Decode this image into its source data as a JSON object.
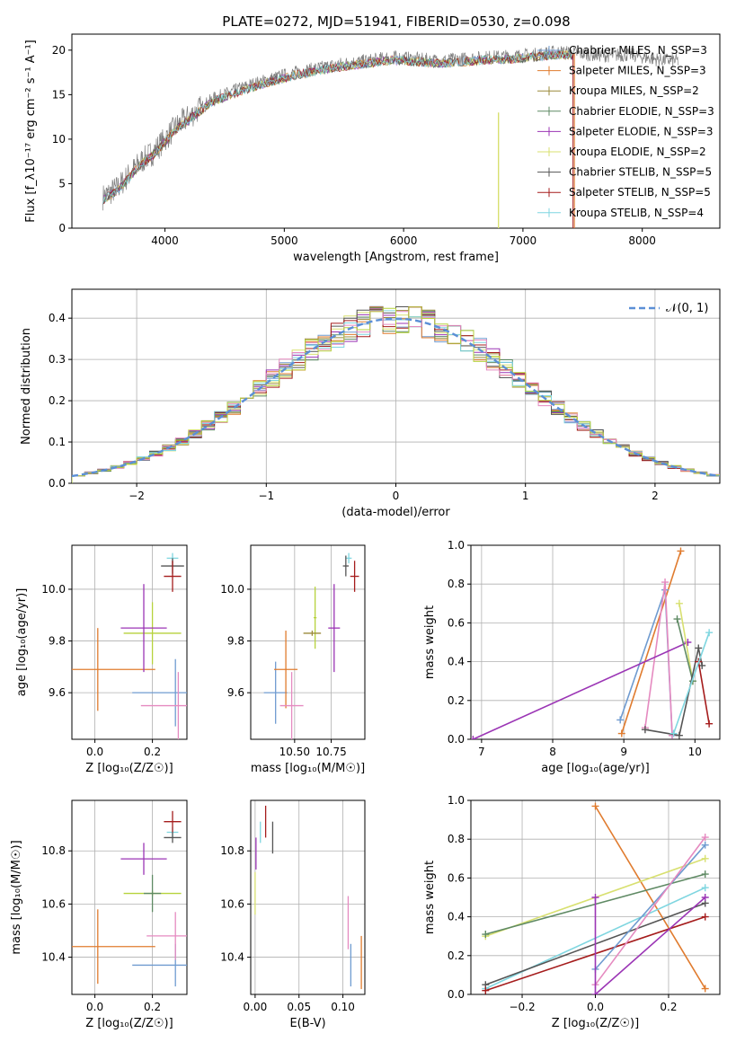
{
  "figure": {
    "title": "PLATE=0272, MJD=51941, FIBERID=0530, z=0.098"
  },
  "colors": {
    "Chabrier MILES": "#6f9bd0",
    "Salpeter MILES": "#e07b2e",
    "Kroupa MILES": "#9a8a3a",
    "Chabrier ELODIE": "#5f8a64",
    "Salpeter ELODIE": "#9b35b5",
    "Kroupa ELODIE": "#d8e070",
    "Chabrier STELIB": "#555555",
    "Salpeter STELIB": "#a51c1c",
    "Kroupa STELIB": "#7fd6e0",
    "Pink": "#e58ac0",
    "Lime": "#b6d23c"
  },
  "chart_data": [
    {
      "id": "spectrum",
      "type": "line",
      "xlabel": "wavelength [Angstrom, rest frame]",
      "ylabel": "Flux [f_λ10⁻¹⁷ erg cm⁻² s⁻¹ A⁻¹]",
      "xlim": [
        3220,
        8650
      ],
      "ylim": [
        0,
        21.8
      ],
      "xticks": [
        "4000",
        "5000",
        "6000",
        "7000",
        "8000"
      ],
      "yticks": [
        "0",
        "5",
        "10",
        "15",
        "20"
      ],
      "legend_position": "top-right",
      "legend": [
        "Chabrier MILES, N_SSP=3",
        "Salpeter MILES, N_SSP=3",
        "Kroupa MILES, N_SSP=2",
        "Chabrier ELODIE, N_SSP=3",
        "Salpeter ELODIE, N_SSP=3",
        "Kroupa ELODIE, N_SSP=2",
        "Chabrier STELIB, N_SSP=5",
        "Salpeter STELIB, N_SSP=5",
        "Kroupa STELIB, N_SSP=4"
      ],
      "data_envelope": {
        "x": [
          3480,
          3600,
          3700,
          3800,
          3900,
          4000,
          4100,
          4200,
          4300,
          4400,
          4500,
          4700,
          4900,
          5100,
          5300,
          5500,
          5700,
          5900,
          6100,
          6300,
          6500,
          6700,
          6900,
          7100,
          7300,
          7500,
          7700,
          7900,
          8100,
          8300
        ],
        "y": [
          3.5,
          4.5,
          6.0,
          7.5,
          8.5,
          10.0,
          11.5,
          12.5,
          13.5,
          14.5,
          15.0,
          16.0,
          16.8,
          17.5,
          18.0,
          18.5,
          18.8,
          19.2,
          19.0,
          18.8,
          19.0,
          19.2,
          19.3,
          19.5,
          19.8,
          19.6,
          19.4,
          19.5,
          19.0,
          18.8
        ]
      },
      "model_xmax": 7420
    },
    {
      "id": "residuals",
      "type": "bar",
      "xlabel": "(data-model)/error",
      "ylabel": "Normed distribution",
      "xlim": [
        -2.5,
        2.5
      ],
      "ylim": [
        0,
        0.47
      ],
      "xticks": [
        "−2",
        "−1",
        "0",
        "1",
        "2"
      ],
      "yticks": [
        "0.0",
        "0.1",
        "0.2",
        "0.3",
        "0.4"
      ],
      "legend_position": "top-right",
      "legend": [
        "𝒩(0, 1)"
      ],
      "bin_width": 0.1
    },
    {
      "id": "age_vs_Z",
      "type": "scatter",
      "xlabel": "Z [log₁₀(Z/Z☉)]",
      "ylabel": "age  [log₁₀(age/yr)]",
      "xlim": [
        -0.08,
        0.32
      ],
      "ylim": [
        9.42,
        10.17
      ],
      "xticks": [
        "0.0",
        "0.2"
      ],
      "yticks": [
        "9.6",
        "9.8",
        "10.0"
      ],
      "points": [
        {
          "color": "Salpeter MILES",
          "x": 0.01,
          "y": 9.69,
          "xerr": 0.2,
          "yerr": 0.16
        },
        {
          "color": "Chabrier MILES",
          "x": 0.28,
          "y": 9.6,
          "xerr": 0.15,
          "yerr": 0.13
        },
        {
          "color": "Pink",
          "x": 0.29,
          "y": 9.55,
          "xerr": 0.13,
          "yerr": 0.13
        },
        {
          "color": "Lime",
          "x": 0.2,
          "y": 9.83,
          "xerr": 0.1,
          "yerr": 0.12
        },
        {
          "color": "Salpeter ELODIE",
          "x": 0.17,
          "y": 9.85,
          "xerr": 0.08,
          "yerr": 0.17
        },
        {
          "color": "Kroupa STELIB",
          "x": 0.27,
          "y": 10.12,
          "xerr": 0.02,
          "yerr": 0.02
        },
        {
          "color": "Chabrier STELIB",
          "x": 0.27,
          "y": 10.09,
          "xerr": 0.04,
          "yerr": 0.03
        },
        {
          "color": "Salpeter STELIB",
          "x": 0.27,
          "y": 10.05,
          "xerr": 0.03,
          "yerr": 0.06
        }
      ]
    },
    {
      "id": "age_vs_mass",
      "type": "scatter",
      "xlabel": "mass [log₁₀(M/M☉)]",
      "ylabel": "",
      "xlim": [
        10.2,
        10.98
      ],
      "ylim": [
        9.42,
        10.17
      ],
      "xticks": [
        "10.50",
        "10.75"
      ],
      "yticks": [
        "9.6",
        "9.8",
        "10.0"
      ],
      "points": [
        {
          "color": "Chabrier MILES",
          "x": 10.37,
          "y": 9.6,
          "xerr": 0.08,
          "yerr": 0.12
        },
        {
          "color": "Salpeter MILES",
          "x": 10.44,
          "y": 9.69,
          "xerr": 0.08,
          "yerr": 0.15
        },
        {
          "color": "Pink",
          "x": 10.48,
          "y": 9.55,
          "xerr": 0.08,
          "yerr": 0.13
        },
        {
          "color": "Lime",
          "x": 10.64,
          "y": 9.89,
          "xerr": 0.01,
          "yerr": 0.12
        },
        {
          "color": "Kroupa MILES",
          "x": 10.62,
          "y": 9.83,
          "xerr": 0.06,
          "yerr": 0.01
        },
        {
          "color": "Salpeter ELODIE",
          "x": 10.77,
          "y": 9.85,
          "xerr": 0.04,
          "yerr": 0.17
        },
        {
          "color": "Kroupa STELIB",
          "x": 10.87,
          "y": 10.12,
          "xerr": 0.02,
          "yerr": 0.02
        },
        {
          "color": "Chabrier STELIB",
          "x": 10.85,
          "y": 10.09,
          "xerr": 0.02,
          "yerr": 0.04
        },
        {
          "color": "Salpeter STELIB",
          "x": 10.91,
          "y": 10.05,
          "xerr": 0.03,
          "yerr": 0.06
        }
      ]
    },
    {
      "id": "weight_vs_age",
      "type": "line",
      "xlabel": "age  [log₁₀(age/yr)]",
      "ylabel": "mass weight",
      "xlim": [
        6.85,
        10.35
      ],
      "ylim": [
        0,
        1.0
      ],
      "xticks": [
        "7",
        "8",
        "9",
        "10"
      ],
      "yticks": [
        "0.0",
        "0.2",
        "0.4",
        "0.6",
        "0.8",
        "1.0"
      ],
      "series": [
        {
          "color": "Salpeter MILES",
          "x": [
            8.97,
            9.8
          ],
          "y": [
            0.03,
            0.97
          ]
        },
        {
          "color": "Chabrier MILES",
          "x": [
            8.95,
            9.58,
            9.68
          ],
          "y": [
            0.1,
            0.77,
            0.02
          ]
        },
        {
          "color": "Pink",
          "x": [
            9.3,
            9.58,
            9.68
          ],
          "y": [
            0.06,
            0.81,
            0.02
          ]
        },
        {
          "color": "Salpeter ELODIE",
          "x": [
            6.88,
            9.9
          ],
          "y": [
            0.0,
            0.5
          ]
        },
        {
          "color": "Kroupa ELODIE",
          "x": [
            9.78,
            9.97
          ],
          "y": [
            0.7,
            0.3
          ]
        },
        {
          "color": "Chabrier ELODIE",
          "x": [
            9.75,
            9.97
          ],
          "y": [
            0.62,
            0.3
          ]
        },
        {
          "color": "Chabrier STELIB",
          "x": [
            9.3,
            9.78,
            10.05,
            10.1
          ],
          "y": [
            0.05,
            0.02,
            0.47,
            0.38
          ]
        },
        {
          "color": "Salpeter STELIB",
          "x": [
            10.05,
            10.2
          ],
          "y": [
            0.4,
            0.08
          ]
        },
        {
          "color": "Kroupa STELIB",
          "x": [
            9.7,
            10.2
          ],
          "y": [
            0.03,
            0.55
          ]
        }
      ]
    },
    {
      "id": "mass_vs_Z",
      "type": "scatter",
      "xlabel": "Z [log₁₀(Z/Z☉)]",
      "ylabel": "mass [log₁₀(M/M☉)]",
      "xlim": [
        -0.08,
        0.32
      ],
      "ylim": [
        10.26,
        10.99
      ],
      "xticks": [
        "0.0",
        "0.2"
      ],
      "yticks": [
        "10.4",
        "10.6",
        "10.8"
      ],
      "points": [
        {
          "color": "Salpeter MILES",
          "x": 0.01,
          "y": 10.44,
          "xerr": 0.2,
          "yerr": 0.14
        },
        {
          "color": "Chabrier MILES",
          "x": 0.28,
          "y": 10.37,
          "xerr": 0.15,
          "yerr": 0.08
        },
        {
          "color": "Pink",
          "x": 0.28,
          "y": 10.48,
          "xerr": 0.1,
          "yerr": 0.09
        },
        {
          "color": "Lime",
          "x": 0.2,
          "y": 10.64,
          "xerr": 0.1,
          "yerr": 0.01
        },
        {
          "color": "Chabrier ELODIE",
          "x": 0.2,
          "y": 10.64,
          "xerr": 0.03,
          "yerr": 0.07
        },
        {
          "color": "Salpeter ELODIE",
          "x": 0.17,
          "y": 10.77,
          "xerr": 0.08,
          "yerr": 0.06
        },
        {
          "color": "Kroupa STELIB",
          "x": 0.27,
          "y": 10.87,
          "xerr": 0.02,
          "yerr": 0.02
        },
        {
          "color": "Chabrier STELIB",
          "x": 0.27,
          "y": 10.85,
          "xerr": 0.03,
          "yerr": 0.02
        },
        {
          "color": "Salpeter STELIB",
          "x": 0.27,
          "y": 10.91,
          "xerr": 0.03,
          "yerr": 0.04
        }
      ]
    },
    {
      "id": "mass_vs_ebv",
      "type": "scatter",
      "xlabel": "E(B-V)",
      "ylabel": "",
      "xlim": [
        -0.005,
        0.125
      ],
      "ylim": [
        10.26,
        10.99
      ],
      "xticks": [
        "0.00",
        "0.05",
        "0.10"
      ],
      "yticks": [
        "10.4",
        "10.6",
        "10.8"
      ],
      "points": [
        {
          "color": "Kroupa ELODIE",
          "x": 0.0,
          "y": 10.64,
          "xerr": 0,
          "yerr": 0.08
        },
        {
          "color": "Salpeter ELODIE",
          "x": 0.001,
          "y": 10.79,
          "xerr": 0,
          "yerr": 0.06
        },
        {
          "color": "Kroupa STELIB",
          "x": 0.006,
          "y": 10.87,
          "xerr": 0,
          "yerr": 0.04
        },
        {
          "color": "Salpeter STELIB",
          "x": 0.012,
          "y": 10.91,
          "xerr": 0,
          "yerr": 0.06
        },
        {
          "color": "Chabrier STELIB",
          "x": 0.02,
          "y": 10.85,
          "xerr": 0,
          "yerr": 0.06
        },
        {
          "color": "Pink",
          "x": 0.106,
          "y": 10.53,
          "xerr": 0,
          "yerr": 0.1
        },
        {
          "color": "Chabrier MILES",
          "x": 0.109,
          "y": 10.37,
          "xerr": 0,
          "yerr": 0.08
        },
        {
          "color": "Salpeter MILES",
          "x": 0.121,
          "y": 10.38,
          "xerr": 0,
          "yerr": 0.1
        }
      ]
    },
    {
      "id": "weight_vs_Z",
      "type": "line",
      "xlabel": "Z [log₁₀(Z/Z☉)]",
      "ylabel": "mass weight",
      "xlim": [
        -0.34,
        0.34
      ],
      "ylim": [
        0,
        1.0
      ],
      "xticks": [
        "−0.2",
        "0.0",
        "0.2"
      ],
      "yticks": [
        "0.0",
        "0.2",
        "0.4",
        "0.6",
        "0.8",
        "1.0"
      ],
      "series": [
        {
          "color": "Salpeter MILES",
          "x": [
            0.0,
            0.3
          ],
          "y": [
            0.97,
            0.03
          ]
        },
        {
          "color": "Kroupa ELODIE",
          "x": [
            -0.3,
            0.3
          ],
          "y": [
            0.3,
            0.7
          ]
        },
        {
          "color": "Chabrier ELODIE",
          "x": [
            -0.3,
            0.3
          ],
          "y": [
            0.31,
            0.62
          ]
        },
        {
          "color": "Kroupa STELIB",
          "x": [
            -0.3,
            0.3
          ],
          "y": [
            0.03,
            0.55
          ]
        },
        {
          "color": "Chabrier STELIB",
          "x": [
            -0.3,
            0.3
          ],
          "y": [
            0.05,
            0.47
          ]
        },
        {
          "color": "Salpeter STELIB",
          "x": [
            -0.3,
            0.3
          ],
          "y": [
            0.02,
            0.4
          ]
        },
        {
          "color": "Chabrier MILES",
          "x": [
            0.0,
            0.3
          ],
          "y": [
            0.13,
            0.77
          ]
        },
        {
          "color": "Pink",
          "x": [
            0.0,
            0.3
          ],
          "y": [
            0.05,
            0.81
          ]
        },
        {
          "color": "Salpeter ELODIE",
          "x": [
            0.0,
            0.0,
            0.3
          ],
          "y": [
            0.5,
            0.0,
            0.5
          ]
        }
      ]
    }
  ]
}
